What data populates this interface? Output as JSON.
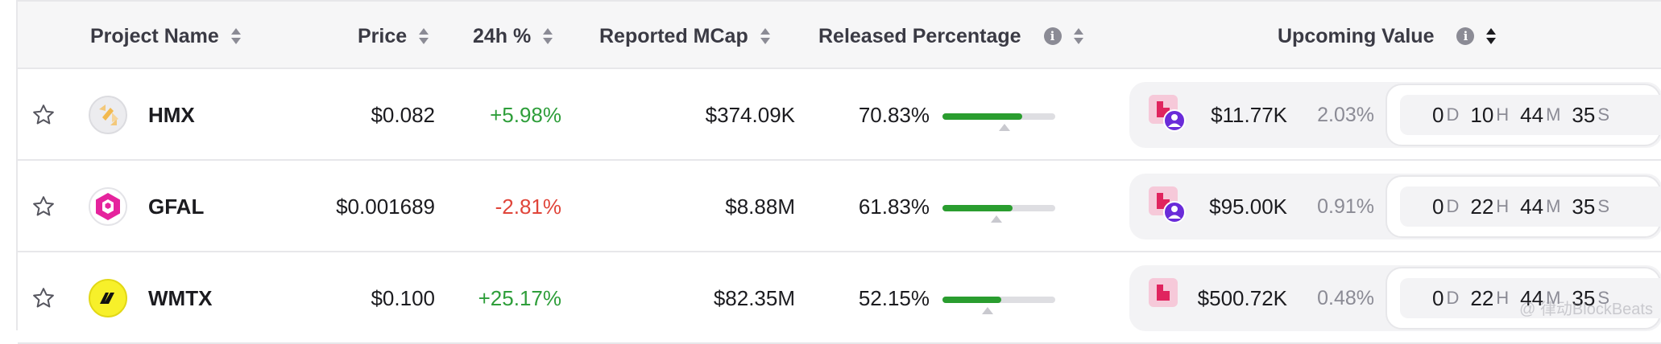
{
  "headers": {
    "project_name": "Project Name",
    "price": "Price",
    "change_24h": "24h %",
    "reported_mcap": "Reported MCap",
    "released_percentage": "Released Percentage",
    "upcoming_value": "Upcoming Value"
  },
  "rows": [
    {
      "symbol": "HMX",
      "logo": "hmx-logo",
      "price": "$0.082",
      "change": "+5.98%",
      "change_dir": "up",
      "mcap": "$374.09K",
      "released": "70.83%",
      "released_fraction": 0.7083,
      "marker_fraction": 0.55,
      "unlock_icon": "unlock-category-icon-with-user",
      "upcoming_value": "$11.77K",
      "upcoming_pct": "2.03%",
      "countdown": {
        "d": "0",
        "h": "10",
        "m": "44",
        "s": "35"
      }
    },
    {
      "symbol": "GFAL",
      "logo": "gfal-logo",
      "price": "$0.001689",
      "change": "-2.81%",
      "change_dir": "down",
      "mcap": "$8.88M",
      "released": "61.83%",
      "released_fraction": 0.6183,
      "marker_fraction": 0.48,
      "unlock_icon": "unlock-category-icon-with-user",
      "upcoming_value": "$95.00K",
      "upcoming_pct": "0.91%",
      "countdown": {
        "d": "0",
        "h": "22",
        "m": "44",
        "s": "35"
      }
    },
    {
      "symbol": "WMTX",
      "logo": "wmtx-logo",
      "price": "$0.100",
      "change": "+25.17%",
      "change_dir": "up",
      "mcap": "$82.35M",
      "released": "52.15%",
      "released_fraction": 0.5215,
      "marker_fraction": 0.4,
      "unlock_icon": "unlock-category-icon",
      "upcoming_value": "$500.72K",
      "upcoming_pct": "0.48%",
      "countdown": {
        "d": "0",
        "h": "22",
        "m": "44",
        "s": "35"
      }
    }
  ],
  "countdown_units": {
    "d": "D",
    "h": "H",
    "m": "M",
    "s": "S"
  },
  "watermark": "@ 律动BlockBeats",
  "colors": {
    "positive": "#2e9e3a",
    "negative": "#e0453a",
    "bar": "#2a9d2f",
    "accent_purple": "#6a2bd9",
    "accent_pink": "#e02a7a"
  }
}
